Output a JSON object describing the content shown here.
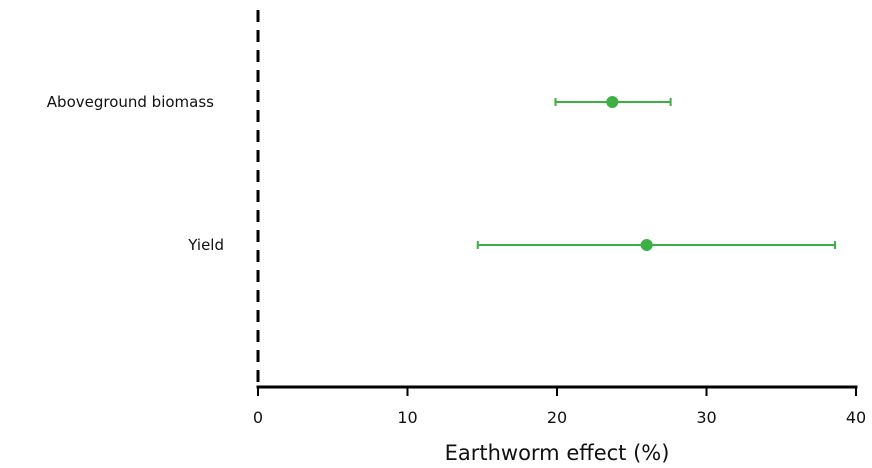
{
  "chart_data": {
    "type": "scatter",
    "subtype": "forest-plot",
    "title": "",
    "xlabel": "Earthworm effect (%)",
    "ylabel": "",
    "xlim": [
      0,
      40
    ],
    "xticks": [
      "0",
      "10",
      "20",
      "30",
      "40"
    ],
    "xtick_values": [
      0,
      10,
      20,
      30,
      40
    ],
    "reference_line": {
      "x": 0,
      "style": "dashed",
      "color": "#000000"
    },
    "grid": false,
    "legend": "none",
    "marker_color": "#3cb043",
    "categories": [
      "Aboveground biomass",
      "Yield"
    ],
    "points": [
      {
        "category": "Aboveground biomass",
        "estimate": 23.7,
        "ci_low": 19.9,
        "ci_high": 27.6
      },
      {
        "category": "Yield",
        "estimate": 26.0,
        "ci_low": 14.7,
        "ci_high": 38.6
      }
    ]
  }
}
